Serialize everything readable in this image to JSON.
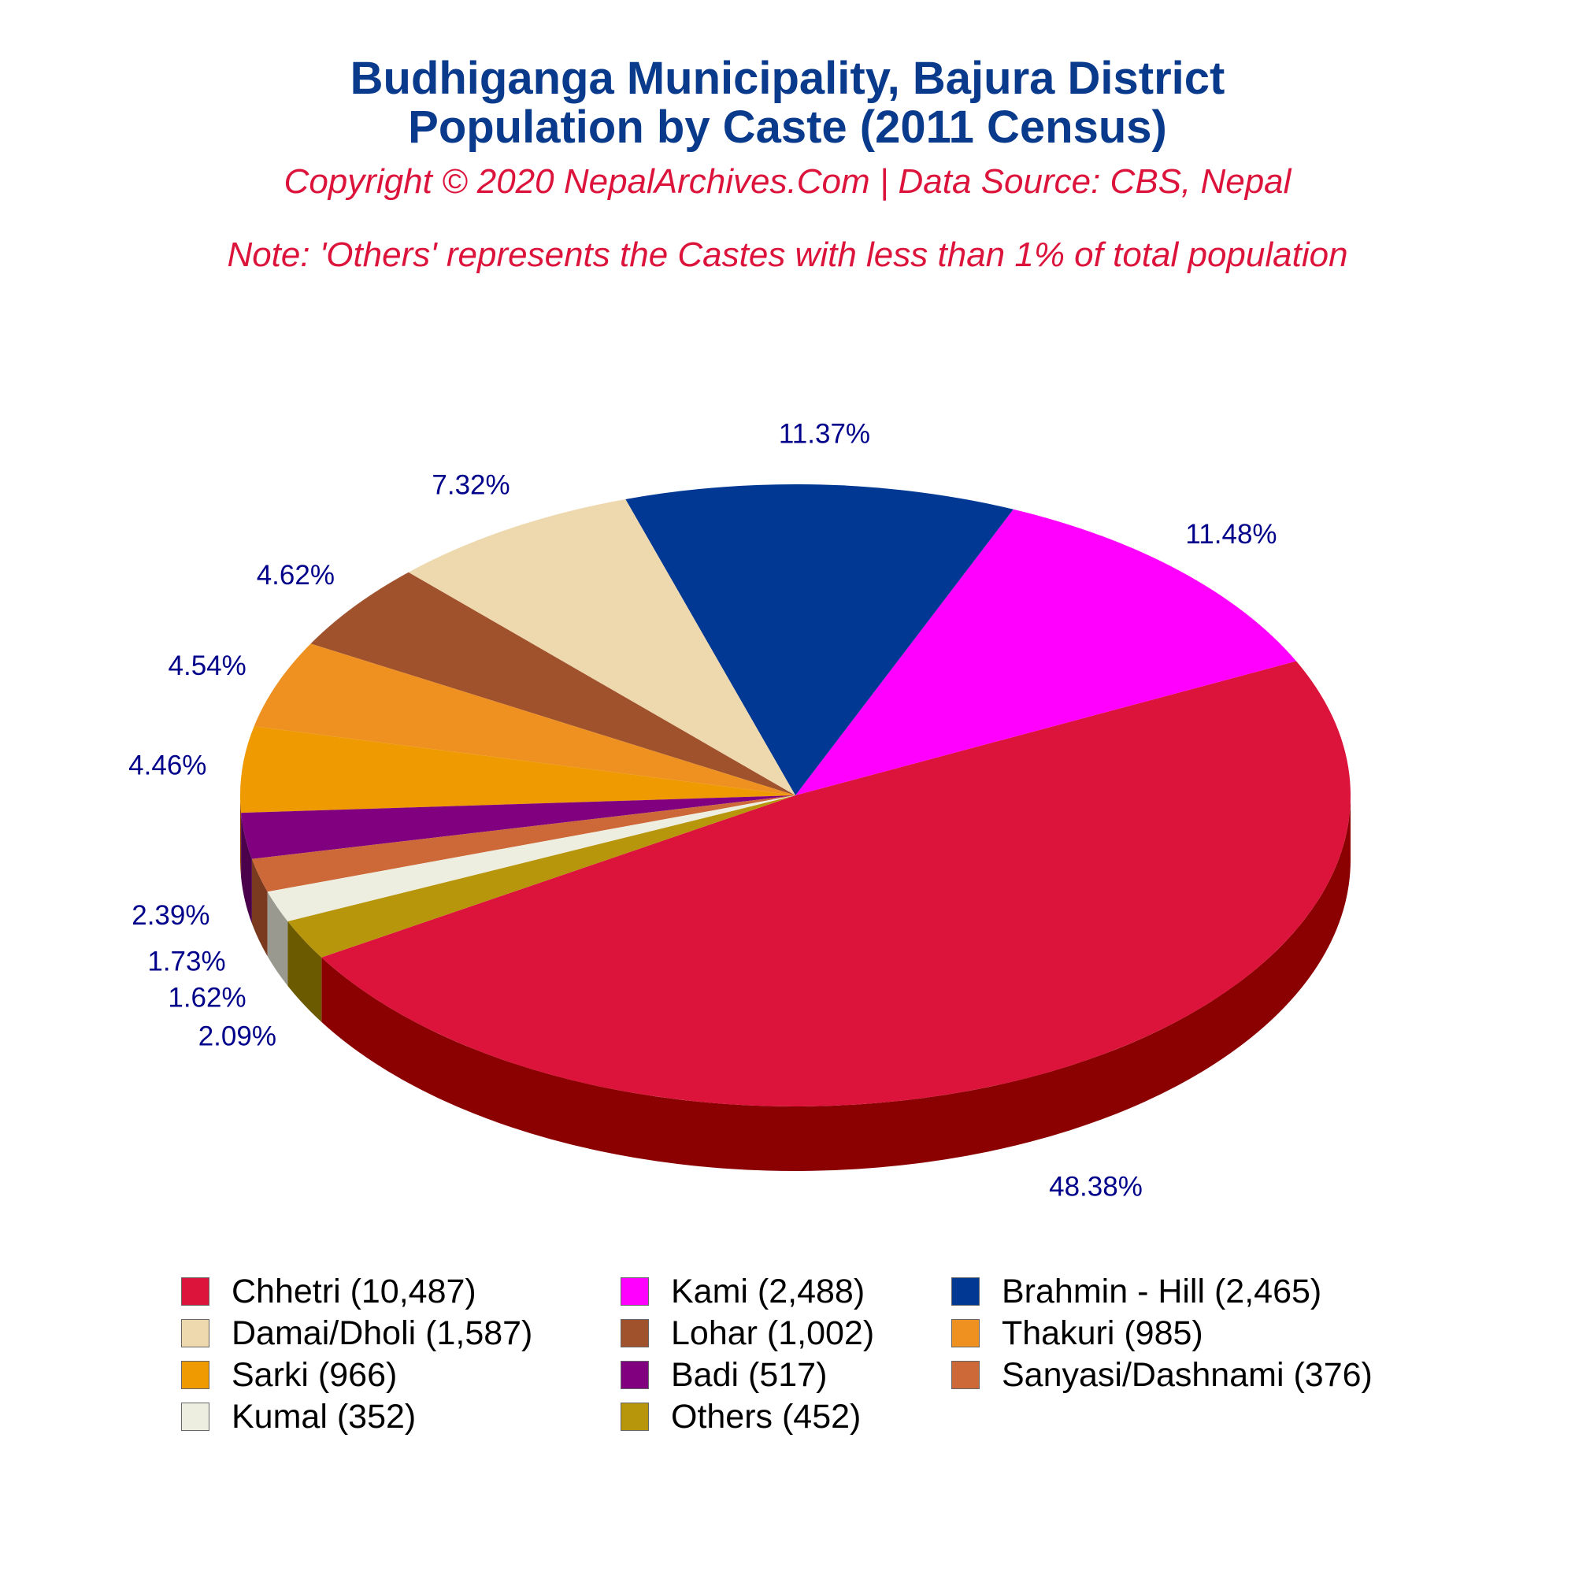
{
  "title_line1": "Budhiganga Municipality, Bajura District",
  "title_line2": "Population by Caste (2011 Census)",
  "copyright": "Copyright © 2020 NepalArchives.Com | Data Source: CBS, Nepal",
  "note": "Note: 'Others' represents the Castes with less than 1% of total population",
  "chart_data": {
    "type": "pie",
    "categories": [
      "Chhetri",
      "Kami",
      "Brahmin - Hill",
      "Damai/Dholi",
      "Lohar",
      "Thakuri",
      "Sarki",
      "Badi",
      "Sanyasi/Dashnami",
      "Kumal",
      "Others"
    ],
    "values": [
      10487,
      2488,
      2465,
      1587,
      1002,
      985,
      966,
      517,
      376,
      352,
      452
    ],
    "percent_labels": [
      "48.38%",
      "11.48%",
      "11.37%",
      "7.32%",
      "4.62%",
      "4.54%",
      "4.46%",
      "2.39%",
      "1.73%",
      "1.62%",
      "2.09%"
    ],
    "legend_labels": [
      "Chhetri (10,487)",
      "Kami (2,488)",
      "Brahmin - Hill (2,465)",
      "Damai/Dholi (1,587)",
      "Lohar (1,002)",
      "Thakuri (985)",
      "Sarki (966)",
      "Badi (517)",
      "Sanyasi/Dashnami (376)",
      "Kumal (352)",
      "Others (452)"
    ],
    "colors": [
      "#dc143c",
      "#ff00ff",
      "#003893",
      "#eed8ae",
      "#a0522d",
      "#ee9121",
      "#ee9a00",
      "#800080",
      "#cd6839",
      "#eeeee0",
      "#b8960c"
    ],
    "side_colors": [
      "#8b0000",
      "#a000a8",
      "#000033",
      "#938258",
      "#5a0000",
      "#8b3a00",
      "#8b3a00",
      "#4b004b",
      "#7a3a1f",
      "#999990",
      "#6b5a00"
    ],
    "legend_placement": "bottom",
    "legend_columns": 3
  }
}
